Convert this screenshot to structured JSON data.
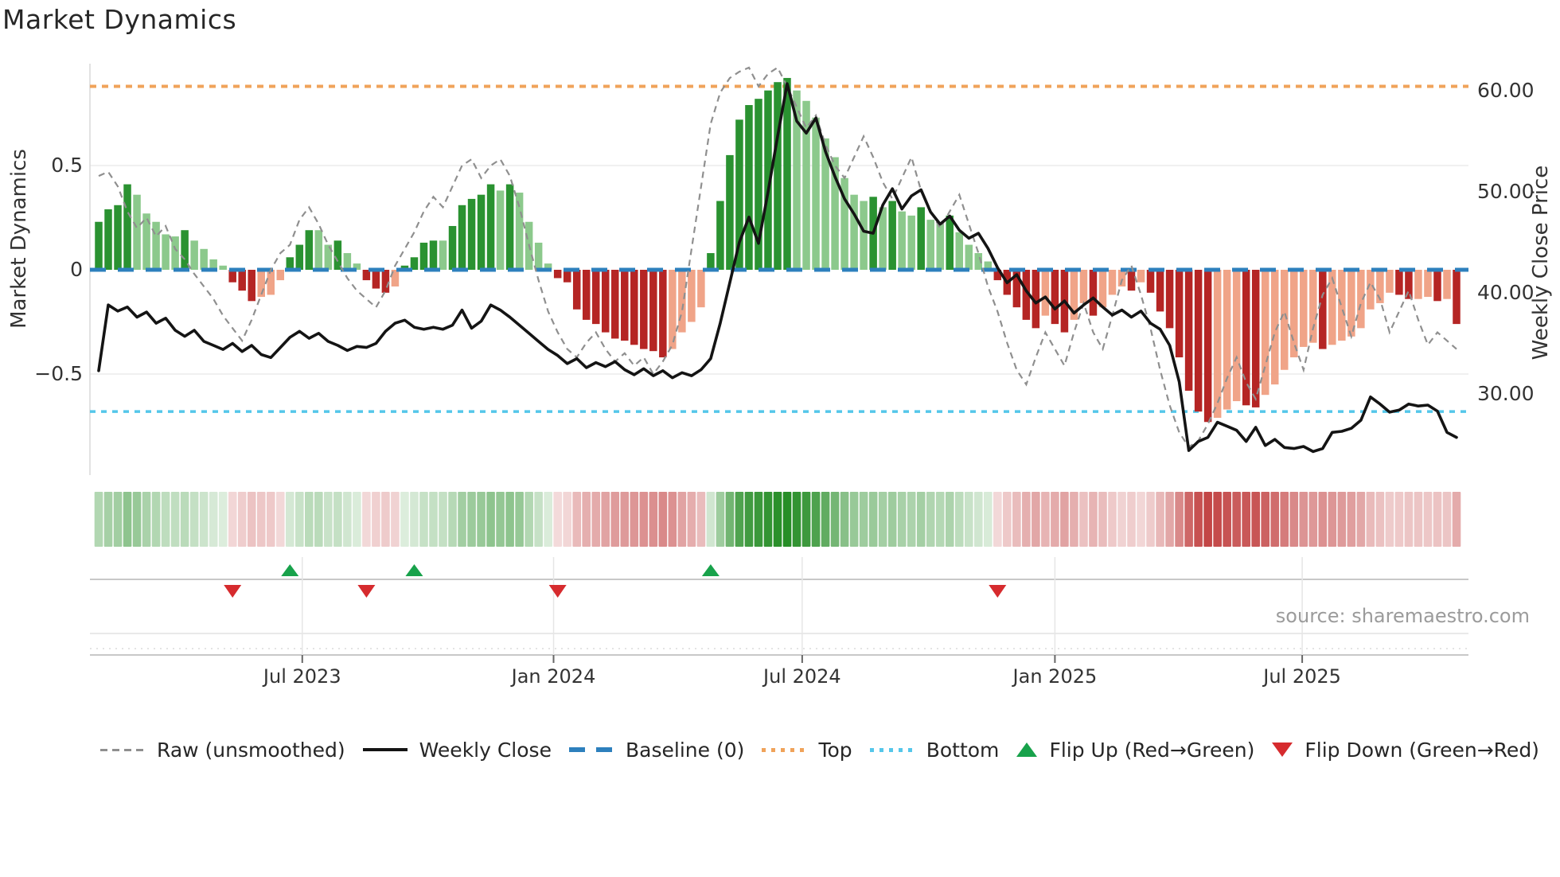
{
  "title": "Market Dynamics",
  "source_text": "source: sharemaestro.com",
  "axes": {
    "left": {
      "label": "Market Dynamics",
      "ticks": [
        "0.5",
        "0",
        "−0.5"
      ],
      "tick_values": [
        0.5,
        0,
        -0.5
      ]
    },
    "right": {
      "label": "Weekly Close Price",
      "ticks": [
        "60.00",
        "50.00",
        "40.00",
        "30.00"
      ],
      "tick_values": [
        60,
        50,
        40,
        30
      ]
    },
    "x": {
      "ticks": [
        "Jul 2023",
        "Jan 2024",
        "Jul 2024",
        "Jan 2025",
        "Jul 2025"
      ],
      "tick_weeks": [
        21.29,
        47.57,
        73.57,
        100.0,
        125.86
      ]
    }
  },
  "legend": {
    "items": [
      {
        "label": "Raw (unsmoothed)",
        "type": "dashed",
        "color": "#8f8f8f"
      },
      {
        "label": "Weekly Close",
        "type": "solid",
        "color": "#141414"
      },
      {
        "label": "Baseline (0)",
        "type": "dash-heavy",
        "color": "#2d80bd"
      },
      {
        "label": "Top",
        "type": "dotted",
        "color": "#f0a35a"
      },
      {
        "label": "Bottom",
        "type": "dotted",
        "color": "#55c7ea"
      },
      {
        "label": "Flip Up (Red→Green)",
        "type": "triangle-up",
        "color": "#18a24b"
      },
      {
        "label": "Flip Down (Green→Red)",
        "type": "triangle-down",
        "color": "#d62b2e"
      }
    ]
  },
  "colors": {
    "bar_green_dark": "#2a9231",
    "bar_green_light": "#8cc98c",
    "bar_red_dark": "#b52524",
    "bar_red_light": "#f0a488",
    "baseline": "#2d80bd",
    "top_line": "#f0a35a",
    "bottom_line": "#55c7ea",
    "raw_line": "#8f8f8f",
    "close_line": "#141414",
    "flip_up": "#18a24b",
    "flip_down": "#d62b2e",
    "heat_green_base": "#228b22",
    "heat_red_base": "#be3636",
    "grid": "#ececec",
    "spine": "#d8d8d8",
    "panel_line": "#c8c8c8"
  },
  "chart_data": {
    "type": "bar",
    "title": "Market Dynamics",
    "xlabel": "",
    "ylabel": "Market Dynamics",
    "ylabel_right": "Weekly Close Price",
    "frequency": "weekly",
    "start_date": "2023-02-03",
    "end_date": "2025-10-24",
    "n_points": 143,
    "ylim_left": [
      -0.97,
      0.99
    ],
    "ylim_right": [
      22.0,
      62.5
    ],
    "grid": "horizontal-only",
    "legend_position": "bottom",
    "lines": {
      "baseline": 0,
      "top": 0.88,
      "bottom": -0.68
    },
    "series": [
      {
        "name": "Momentum (bars, smoothed)",
        "type": "bar",
        "axis": "left",
        "values": [
          0.23,
          0.29,
          0.31,
          0.41,
          0.36,
          0.27,
          0.23,
          0.17,
          0.16,
          0.19,
          0.14,
          0.1,
          0.05,
          0.02,
          -0.06,
          -0.1,
          -0.15,
          -0.13,
          -0.12,
          -0.05,
          0.06,
          0.12,
          0.19,
          0.19,
          0.12,
          0.14,
          0.08,
          0.03,
          -0.05,
          -0.09,
          -0.11,
          -0.08,
          0.02,
          0.06,
          0.13,
          0.14,
          0.14,
          0.21,
          0.31,
          0.34,
          0.36,
          0.41,
          0.38,
          0.41,
          0.37,
          0.23,
          0.13,
          0.03,
          -0.04,
          -0.06,
          -0.19,
          -0.24,
          -0.26,
          -0.3,
          -0.33,
          -0.34,
          -0.36,
          -0.38,
          -0.39,
          -0.42,
          -0.38,
          -0.3,
          -0.25,
          -0.18,
          0.08,
          0.33,
          0.55,
          0.72,
          0.79,
          0.82,
          0.86,
          0.9,
          0.92,
          0.86,
          0.81,
          0.73,
          0.63,
          0.54,
          0.44,
          0.36,
          0.33,
          0.35,
          0.3,
          0.33,
          0.28,
          0.26,
          0.3,
          0.24,
          0.22,
          0.26,
          0.18,
          0.12,
          0.08,
          0.04,
          -0.05,
          -0.12,
          -0.18,
          -0.24,
          -0.28,
          -0.22,
          -0.26,
          -0.3,
          -0.24,
          -0.16,
          -0.22,
          -0.18,
          -0.12,
          -0.08,
          -0.1,
          -0.06,
          -0.11,
          -0.2,
          -0.28,
          -0.42,
          -0.58,
          -0.68,
          -0.73,
          -0.71,
          -0.67,
          -0.63,
          -0.65,
          -0.66,
          -0.6,
          -0.55,
          -0.48,
          -0.42,
          -0.37,
          -0.35,
          -0.38,
          -0.36,
          -0.34,
          -0.32,
          -0.28,
          -0.19,
          -0.16,
          -0.11,
          -0.12,
          -0.14,
          -0.14,
          -0.13,
          -0.15,
          -0.14,
          -0.26
        ]
      },
      {
        "name": "Raw (unsmoothed)",
        "type": "line",
        "style": "dashed",
        "axis": "left",
        "values": [
          0.45,
          0.47,
          0.4,
          0.28,
          0.2,
          0.25,
          0.16,
          0.21,
          0.1,
          0.05,
          -0.02,
          -0.08,
          -0.14,
          -0.22,
          -0.28,
          -0.34,
          -0.24,
          -0.12,
          0.0,
          0.08,
          0.12,
          0.24,
          0.3,
          0.22,
          0.12,
          0.04,
          -0.04,
          -0.1,
          -0.14,
          -0.18,
          -0.1,
          0.02,
          0.1,
          0.18,
          0.28,
          0.35,
          0.3,
          0.4,
          0.5,
          0.53,
          0.44,
          0.5,
          0.53,
          0.45,
          0.3,
          0.12,
          -0.05,
          -0.2,
          -0.3,
          -0.38,
          -0.42,
          -0.35,
          -0.3,
          -0.38,
          -0.44,
          -0.4,
          -0.46,
          -0.42,
          -0.5,
          -0.44,
          -0.36,
          -0.2,
          0.1,
          0.4,
          0.7,
          0.85,
          0.92,
          0.95,
          0.97,
          0.88,
          0.94,
          0.97,
          0.88,
          0.78,
          0.68,
          0.74,
          0.6,
          0.5,
          0.44,
          0.54,
          0.64,
          0.54,
          0.42,
          0.34,
          0.44,
          0.54,
          0.38,
          0.28,
          0.2,
          0.28,
          0.36,
          0.22,
          0.08,
          -0.08,
          -0.2,
          -0.35,
          -0.48,
          -0.55,
          -0.42,
          -0.3,
          -0.38,
          -0.46,
          -0.3,
          -0.16,
          -0.3,
          -0.38,
          -0.22,
          -0.05,
          0.02,
          -0.12,
          -0.28,
          -0.48,
          -0.65,
          -0.78,
          -0.85,
          -0.82,
          -0.74,
          -0.64,
          -0.52,
          -0.42,
          -0.54,
          -0.62,
          -0.46,
          -0.3,
          -0.2,
          -0.35,
          -0.48,
          -0.28,
          -0.12,
          -0.04,
          -0.18,
          -0.32,
          -0.16,
          -0.06,
          -0.14,
          -0.3,
          -0.2,
          -0.1,
          -0.24,
          -0.36,
          -0.3,
          -0.34,
          -0.38
        ]
      },
      {
        "name": "Weekly Close",
        "type": "line",
        "style": "solid",
        "axis": "right",
        "values": [
          32.3,
          38.8,
          38.2,
          38.6,
          37.6,
          38.1,
          37.0,
          37.5,
          36.3,
          35.7,
          36.3,
          35.2,
          34.8,
          34.4,
          35.0,
          34.2,
          34.8,
          33.9,
          33.6,
          34.6,
          35.6,
          36.2,
          35.5,
          36.0,
          35.2,
          34.8,
          34.3,
          34.7,
          34.6,
          35.0,
          36.2,
          37.0,
          37.3,
          36.6,
          36.4,
          36.6,
          36.4,
          36.8,
          38.3,
          36.5,
          37.2,
          38.8,
          38.3,
          37.6,
          36.8,
          36.0,
          35.2,
          34.4,
          33.8,
          33.0,
          33.5,
          32.6,
          33.1,
          32.7,
          33.2,
          32.4,
          31.9,
          32.5,
          31.8,
          32.3,
          31.6,
          32.1,
          31.8,
          32.4,
          33.5,
          37.0,
          41.0,
          45.0,
          47.5,
          44.9,
          50.0,
          55.5,
          60.7,
          57.0,
          55.8,
          57.3,
          54.0,
          51.5,
          49.3,
          47.8,
          46.1,
          45.9,
          48.7,
          50.3,
          48.3,
          49.6,
          50.2,
          48.0,
          46.8,
          47.6,
          46.2,
          45.4,
          45.9,
          44.4,
          42.5,
          41.0,
          41.8,
          40.2,
          39.0,
          39.6,
          38.4,
          39.2,
          38.0,
          38.8,
          39.5,
          38.6,
          37.8,
          38.3,
          37.6,
          38.2,
          37.0,
          36.4,
          34.8,
          31.2,
          24.4,
          25.3,
          25.7,
          27.2,
          26.8,
          26.4,
          25.3,
          26.7,
          24.9,
          25.5,
          24.7,
          24.6,
          24.8,
          24.3,
          24.6,
          26.2,
          26.3,
          26.6,
          27.4,
          29.7,
          29.0,
          28.2,
          28.4,
          29.0,
          28.8,
          28.9,
          28.3,
          26.2,
          25.7
        ]
      }
    ],
    "flip_up": {
      "weeks": [
        20,
        33,
        64
      ],
      "dates": [
        "2023-06-23",
        "2023-09-22",
        "2024-04-26"
      ]
    },
    "flip_down": {
      "weeks": [
        14,
        28,
        48,
        94
      ],
      "dates": [
        "2023-05-12",
        "2023-08-18",
        "2024-01-05",
        "2024-11-22"
      ]
    }
  }
}
